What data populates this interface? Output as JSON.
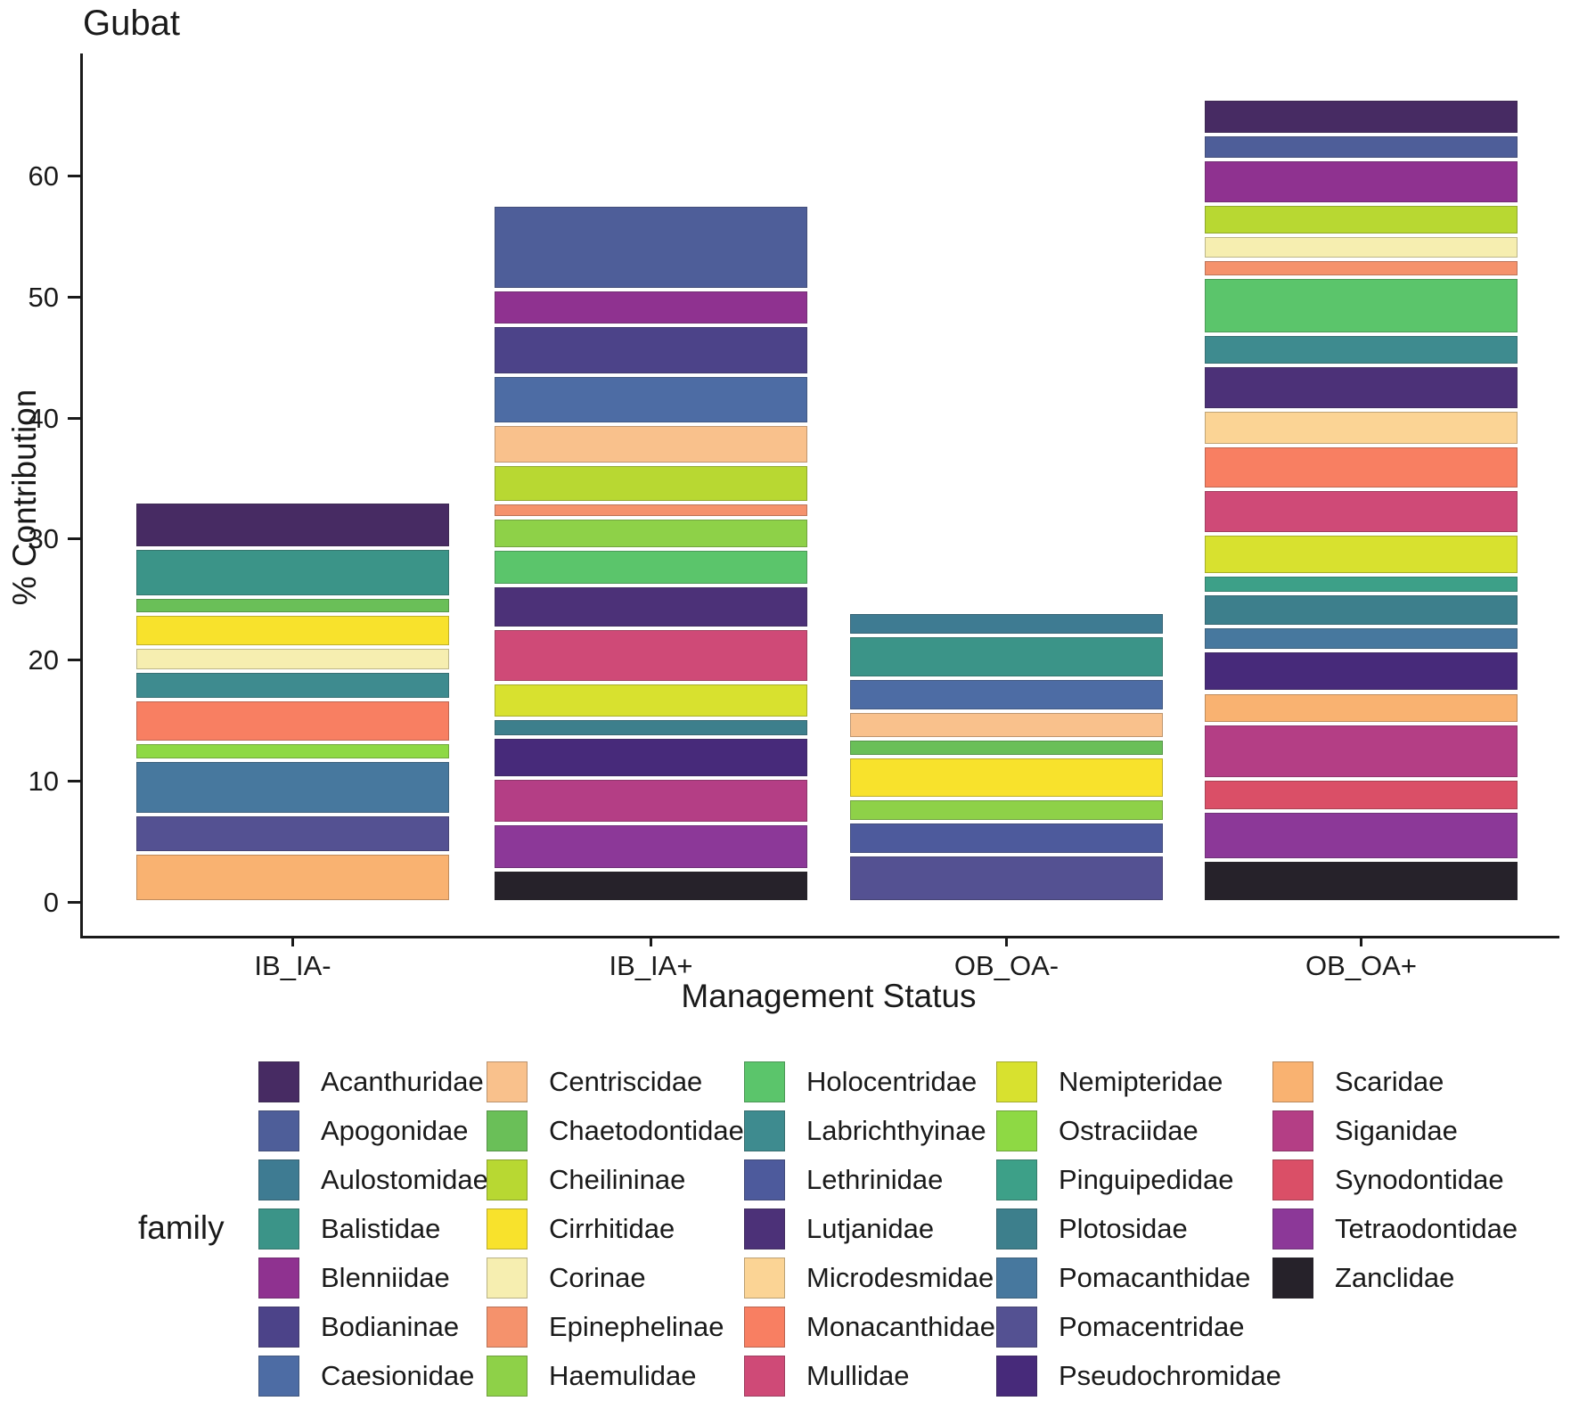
{
  "title": "Gubat",
  "y_axis": {
    "label": "% Contribution",
    "ticks": [
      0,
      10,
      20,
      30,
      40,
      50,
      60
    ]
  },
  "x_axis": {
    "label": "Management Status",
    "categories": [
      "IB_IA-",
      "IB_IA+",
      "OB_OA-",
      "OB_OA+"
    ]
  },
  "legend": {
    "title": "family",
    "families_per_column": 7
  },
  "chart_data": {
    "type": "bar",
    "stacked": true,
    "stack_order": "alphabetical, first family at top of bar",
    "title": "Gubat",
    "xlabel": "Management Status",
    "ylabel": "% Contribution",
    "ylim": [
      0,
      67
    ],
    "grid": false,
    "legend_position": "bottom",
    "categories": [
      "IB_IA-",
      "IB_IA+",
      "OB_OA-",
      "OB_OA+"
    ],
    "category_totals": [
      33.1,
      57.6,
      24.0,
      66.4
    ],
    "series": [
      {
        "name": "Acanthuridae",
        "color": "#472b63",
        "values": [
          3.85,
          0,
          0,
          3.0
        ]
      },
      {
        "name": "Apogonidae",
        "color": "#4e5e99",
        "values": [
          0,
          7.0,
          0,
          2.0
        ]
      },
      {
        "name": "Aulostomidae",
        "color": "#3e7b92",
        "values": [
          0,
          0,
          1.9,
          0
        ]
      },
      {
        "name": "Balistidae",
        "color": "#3b9488",
        "values": [
          4.05,
          0,
          3.55,
          0
        ]
      },
      {
        "name": "Blenniidae",
        "color": "#8f3290",
        "values": [
          0,
          2.95,
          0,
          3.75
        ]
      },
      {
        "name": "Bodianinae",
        "color": "#4c4389",
        "values": [
          0,
          4.1,
          0,
          0
        ]
      },
      {
        "name": "Caesionidae",
        "color": "#4d6ca4",
        "values": [
          0,
          4.05,
          2.7,
          0
        ]
      },
      {
        "name": "Centriscidae",
        "color": "#f9c18c",
        "values": [
          0,
          3.35,
          2.3,
          0
        ]
      },
      {
        "name": "Chaetodontidae",
        "color": "#6abf58",
        "values": [
          1.4,
          0,
          1.5,
          0
        ]
      },
      {
        "name": "Cheilininae",
        "color": "#b8d832",
        "values": [
          0,
          3.15,
          0,
          2.55
        ]
      },
      {
        "name": "Cirrhitidae",
        "color": "#f8e22c",
        "values": [
          2.75,
          0,
          3.45,
          0
        ]
      },
      {
        "name": "Corinae",
        "color": "#f6eeb0",
        "values": [
          2.0,
          0,
          0,
          1.95
        ]
      },
      {
        "name": "Epinephelinae",
        "color": "#f5926c",
        "values": [
          0,
          1.25,
          0,
          1.5
        ]
      },
      {
        "name": "Haemulidae",
        "color": "#8ed148",
        "values": [
          0,
          2.55,
          1.9,
          0
        ]
      },
      {
        "name": "Holocentridae",
        "color": "#5bc56b",
        "values": [
          0,
          3.05,
          0,
          4.7
        ]
      },
      {
        "name": "Labrichthyinae",
        "color": "#3e8b8f",
        "values": [
          2.3,
          0,
          0,
          2.6
        ]
      },
      {
        "name": "Lethrinidae",
        "color": "#4d5a9c",
        "values": [
          0,
          0,
          2.75,
          0
        ]
      },
      {
        "name": "Lutjanidae",
        "color": "#4c3178",
        "values": [
          0,
          3.5,
          0,
          3.65
        ]
      },
      {
        "name": "Microdesmidae",
        "color": "#fbd495",
        "values": [
          0,
          0,
          0,
          3.0
        ]
      },
      {
        "name": "Monacanthidae",
        "color": "#f87f62",
        "values": [
          3.55,
          0,
          0,
          3.6
        ]
      },
      {
        "name": "Mullidae",
        "color": "#cf4a77",
        "values": [
          0,
          4.5,
          0,
          3.7
        ]
      },
      {
        "name": "Nemipteridae",
        "color": "#d8e12f",
        "values": [
          0,
          2.95,
          0,
          3.35
        ]
      },
      {
        "name": "Ostraciidae",
        "color": "#8ed944",
        "values": [
          1.5,
          0,
          0,
          0
        ]
      },
      {
        "name": "Pinguipedidae",
        "color": "#3da088",
        "values": [
          0,
          0,
          0,
          1.55
        ]
      },
      {
        "name": "Plotosidae",
        "color": "#3d7f8c",
        "values": [
          0,
          1.55,
          0,
          2.75
        ]
      },
      {
        "name": "Pomacanthidae",
        "color": "#47789e",
        "values": [
          4.45,
          0,
          0,
          1.95
        ]
      },
      {
        "name": "Pomacentridae",
        "color": "#545192",
        "values": [
          3.2,
          0,
          3.9,
          0
        ]
      },
      {
        "name": "Pseudochromidae",
        "color": "#472a7a",
        "values": [
          0,
          3.4,
          0,
          3.45
        ]
      },
      {
        "name": "Scaridae",
        "color": "#f9b271",
        "values": [
          4.05,
          0,
          0,
          2.6
        ]
      },
      {
        "name": "Siganidae",
        "color": "#b43e85",
        "values": [
          0,
          3.8,
          0,
          4.6
        ]
      },
      {
        "name": "Synodontidae",
        "color": "#da4f67",
        "values": [
          0,
          0,
          0,
          2.6
        ]
      },
      {
        "name": "Tetraodontidae",
        "color": "#8c3898",
        "values": [
          0,
          3.8,
          0,
          4.1
        ]
      },
      {
        "name": "Zanclidae",
        "color": "#26222a",
        "values": [
          0,
          2.65,
          0,
          3.45
        ]
      }
    ]
  }
}
